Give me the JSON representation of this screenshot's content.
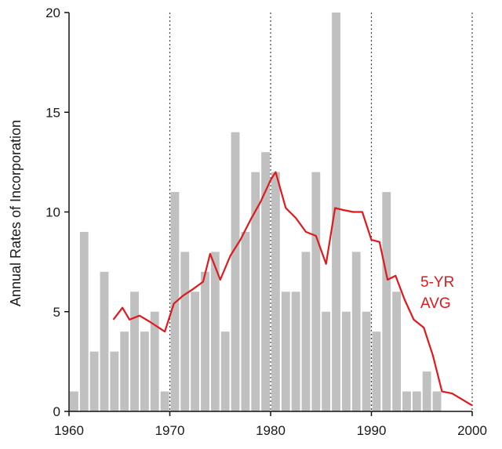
{
  "chart_data": {
    "type": "bar",
    "title": "",
    "xlabel": "",
    "ylabel": "Annual Rates of Incorporation",
    "xlim": [
      1960,
      2000
    ],
    "ylim": [
      0,
      20
    ],
    "x_ticks": [
      "1960",
      "1970",
      "1980",
      "1990",
      "2000"
    ],
    "y_ticks": [
      "0",
      "5",
      "10",
      "15",
      "20"
    ],
    "vertical_reference_lines": [
      1970,
      1980,
      1990,
      2000
    ],
    "grid": false,
    "series": [
      {
        "type": "bar",
        "color": "#c0c0c0",
        "x": [
          1960,
          1961,
          1962,
          1963,
          1964,
          1965,
          1966,
          1967,
          1968,
          1969,
          1970,
          1971,
          1972,
          1973,
          1974,
          1975,
          1976,
          1977,
          1978,
          1979,
          1980,
          1981,
          1982,
          1983,
          1984,
          1985,
          1986,
          1987,
          1988,
          1989,
          1990,
          1991,
          1992,
          1993,
          1994,
          1995,
          1996
        ],
        "values": [
          1,
          9,
          3,
          7,
          3,
          4,
          6,
          4,
          5,
          1,
          11,
          8,
          6,
          7,
          8,
          4,
          14,
          9,
          12,
          13,
          12,
          6,
          6,
          8,
          12,
          5,
          20,
          5,
          8,
          5,
          4,
          11,
          6,
          1,
          1,
          2,
          1
        ]
      },
      {
        "type": "line",
        "name": "5-YR AVG",
        "color": "#e0191c",
        "x": [
          1964.4,
          1965.3,
          1966,
          1967,
          1968,
          1969.5,
          1970.4,
          1971.3,
          1972.2,
          1973.3,
          1974,
          1975,
          1976,
          1977,
          1978,
          1979,
          1980,
          1980.5,
          1981.5,
          1982.5,
          1983.5,
          1984.5,
          1985.5,
          1986.4,
          1987.2,
          1988.2,
          1989.1,
          1990,
          1990.8,
          1991.6,
          1992.4,
          1993.3,
          1994.2,
          1995.2,
          1996.1,
          1997,
          1998,
          1999,
          2000
        ],
        "values": [
          4.6,
          5.2,
          4.6,
          4.8,
          4.5,
          4.0,
          5.4,
          5.8,
          6.1,
          6.5,
          7.9,
          6.6,
          7.8,
          8.6,
          9.6,
          10.5,
          11.6,
          12.0,
          10.2,
          9.7,
          9.0,
          8.8,
          7.4,
          10.2,
          10.1,
          10.0,
          10.0,
          8.6,
          8.5,
          6.6,
          6.8,
          5.6,
          4.6,
          4.2,
          2.8,
          1.0,
          0.9,
          0.6,
          0.3
        ]
      }
    ],
    "annotation": {
      "line1": "5-YR",
      "line2": "AVG",
      "color": "#e0191c"
    }
  }
}
